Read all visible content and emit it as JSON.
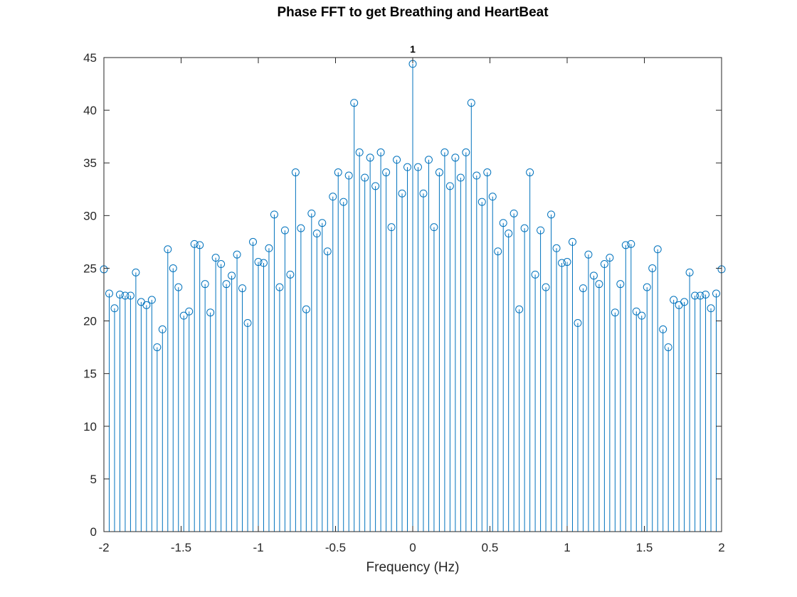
{
  "chart_data": {
    "type": "stem",
    "title": "Phase FFT to get Breathing and HeartBeat",
    "xlabel": "Frequency (Hz)",
    "ylabel": "",
    "xlim": [
      -2,
      2
    ],
    "ylim": [
      0,
      45
    ],
    "x_ticks": [
      "-2",
      "-1.5",
      "-1",
      "-0.5",
      "0",
      "0.5",
      "1",
      "1.5",
      "2"
    ],
    "y_ticks": [
      "0",
      "5",
      "10",
      "15",
      "20",
      "25",
      "30",
      "35",
      "40",
      "45"
    ],
    "grid": false,
    "series_color": "#0072BD",
    "marker": "circle",
    "x_start": -2.0,
    "x_step": 0.0339,
    "annotation": {
      "text": "1",
      "x": 0,
      "y": 44.4
    },
    "values": [
      24.9,
      22.6,
      21.2,
      22.5,
      22.4,
      22.4,
      24.6,
      21.8,
      21.5,
      22.0,
      17.5,
      19.2,
      26.8,
      25.0,
      23.2,
      20.5,
      20.9,
      27.3,
      27.2,
      23.5,
      20.8,
      26.0,
      25.4,
      23.5,
      24.3,
      26.3,
      23.1,
      19.8,
      27.5,
      25.6,
      25.5,
      26.9,
      30.1,
      23.2,
      28.6,
      24.4,
      34.1,
      28.8,
      21.1,
      30.2,
      28.3,
      29.3,
      26.6,
      31.8,
      34.1,
      31.3,
      33.8,
      40.7,
      36.0,
      33.6,
      35.5,
      32.8,
      36.0,
      34.1,
      28.9,
      35.3,
      32.1,
      34.6,
      44.4,
      34.6,
      32.1,
      35.3,
      28.9,
      34.1,
      36.0,
      32.8,
      35.5,
      33.6,
      36.0,
      40.7,
      33.8,
      31.3,
      34.1,
      31.8,
      26.6,
      29.3,
      28.3,
      30.2,
      21.1,
      28.8,
      34.1,
      24.4,
      28.6,
      23.2,
      30.1,
      26.9,
      25.5,
      25.6,
      27.5,
      19.8,
      23.1,
      26.3,
      24.3,
      23.5,
      25.4,
      26.0,
      20.8,
      23.5,
      27.2,
      27.3,
      20.9,
      20.5,
      23.2,
      25.0,
      26.8,
      19.2,
      17.5,
      22.0,
      21.5,
      21.8,
      24.6,
      22.4,
      22.4,
      22.5,
      21.2,
      22.6,
      24.9
    ]
  }
}
